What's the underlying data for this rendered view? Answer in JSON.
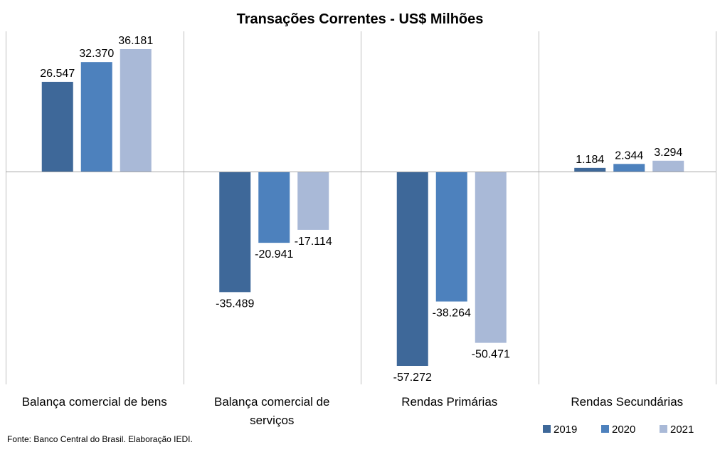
{
  "chart_data": {
    "type": "bar",
    "title": "Transações Correntes  - US$ Milhões",
    "categories": [
      "Balança comercial de bens",
      "Balança comercial de serviços",
      "Rendas Primárias",
      "Rendas Secundárias"
    ],
    "category_lines": [
      [
        "Balança comercial de bens"
      ],
      [
        "Balança comercial de",
        "serviços"
      ],
      [
        "Rendas Primárias"
      ],
      [
        "Rendas Secundárias"
      ]
    ],
    "series": [
      {
        "name": "2019",
        "values": [
          26547,
          -35489,
          -57272,
          1184
        ],
        "labels": [
          "26.547",
          "-35.489",
          "-57.272",
          "1.184"
        ],
        "color": "#3e6899"
      },
      {
        "name": "2020",
        "values": [
          32370,
          -20941,
          -38264,
          2344
        ],
        "labels": [
          "32.370",
          "-20.941",
          "-38.264",
          "2.344"
        ],
        "color": "#4d81bd"
      },
      {
        "name": "2021",
        "values": [
          36181,
          -17114,
          -50471,
          3294
        ],
        "labels": [
          "36.181",
          "-17.114",
          "-50.471",
          "3.294"
        ],
        "color": "#a9b9d7"
      }
    ],
    "ylim": [
      -57272,
      36181
    ],
    "legend_position": "bottom-right",
    "grid": false,
    "source_note": "Fonte: Banco Central do Brasil. Elaboração IEDI."
  }
}
